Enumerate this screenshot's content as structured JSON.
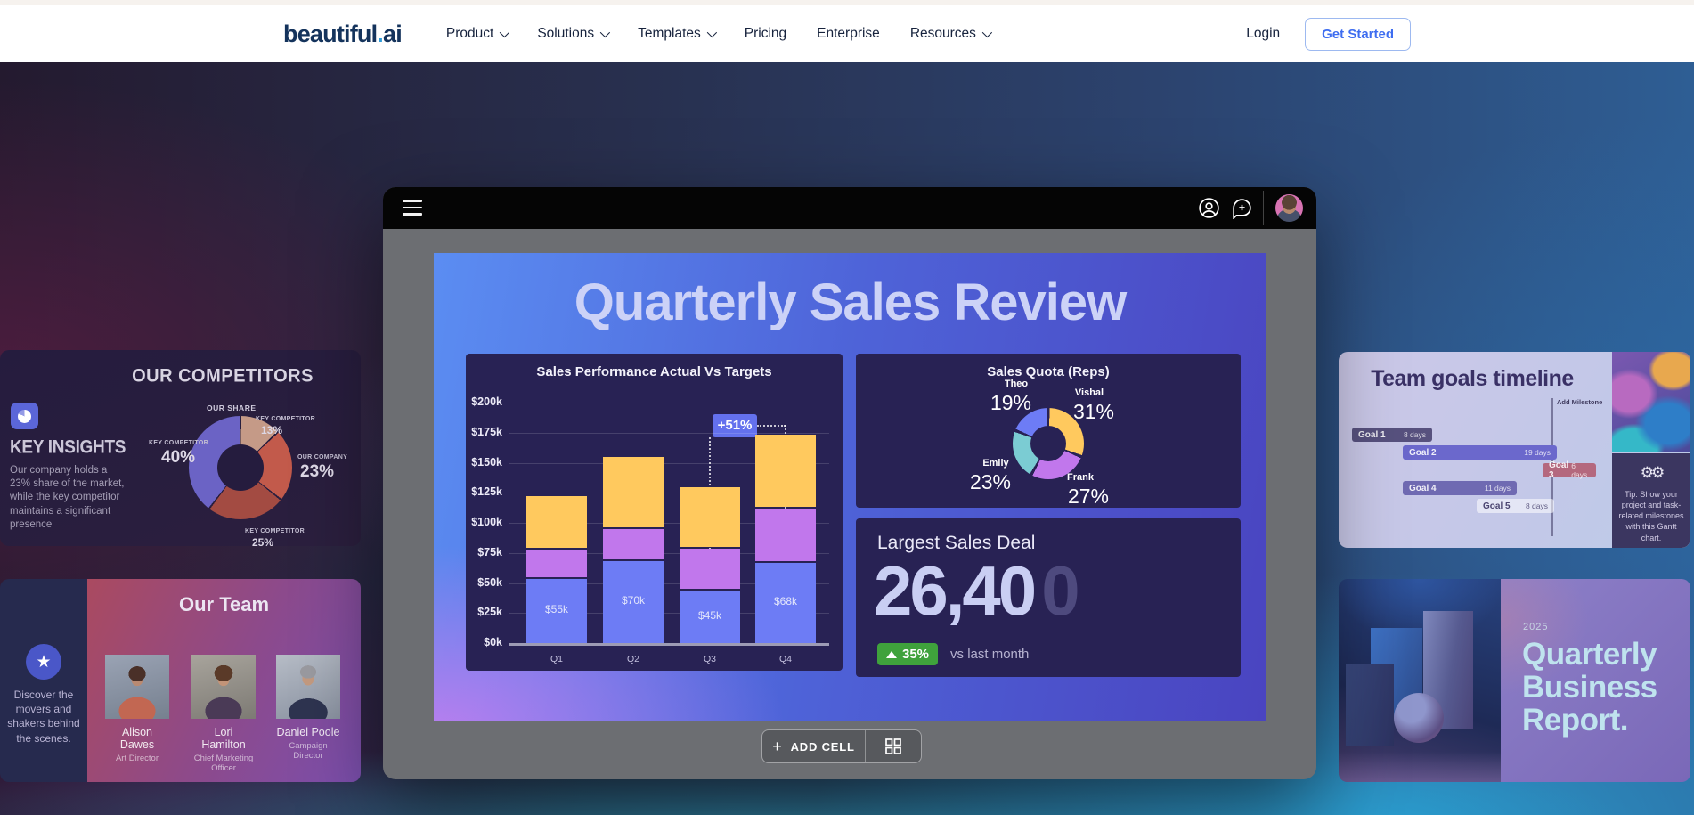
{
  "nav": {
    "logo": {
      "part1": "beautiful",
      "dot": ".",
      "part2": "ai"
    },
    "items": [
      {
        "label": "Product",
        "has_dropdown": true
      },
      {
        "label": "Solutions",
        "has_dropdown": true
      },
      {
        "label": "Templates",
        "has_dropdown": true
      },
      {
        "label": "Pricing",
        "has_dropdown": false
      },
      {
        "label": "Enterprise",
        "has_dropdown": false
      },
      {
        "label": "Resources",
        "has_dropdown": true
      }
    ],
    "login_label": "Login",
    "get_started_label": "Get Started",
    "accent_color": "#3e6df0"
  },
  "editor": {
    "slide": {
      "title": "Quarterly Sales Review",
      "kpi": {
        "title": "Largest Sales Deal",
        "value_main": "26,40",
        "value_ghost": "0",
        "delta": "35%",
        "delta_caption": "vs last month",
        "delta_color": "#3fa23c"
      }
    },
    "add_cell_label": "ADD CELL",
    "icons": [
      "hamburger-menu",
      "account-person",
      "comment-add",
      "user-avatar",
      "add-cell-plus",
      "layout-grid"
    ]
  },
  "chart_data": [
    {
      "type": "bar",
      "stacked": true,
      "title": "Sales Performance Actual Vs Targets",
      "categories": [
        "Q1",
        "Q2",
        "Q3",
        "Q4"
      ],
      "series": [
        {
          "name": "segment-bottom",
          "color": "#6d7cf5",
          "values": [
            55,
            70,
            45,
            68
          ]
        },
        {
          "name": "segment-middle",
          "color": "#c177ec",
          "values": [
            24,
            26,
            35,
            45
          ]
        },
        {
          "name": "segment-top",
          "color": "#ffc95e",
          "values": [
            45,
            60,
            51,
            62
          ]
        }
      ],
      "bar_totals": [
        124,
        156,
        131,
        175
      ],
      "bar_value_labels": [
        "$55k",
        "$70k",
        "$45k",
        "$68k"
      ],
      "y_ticks": [
        "$200k",
        "$175k",
        "$150k",
        "$125k",
        "$100k",
        "$75k",
        "$50k",
        "$25k",
        "$0k"
      ],
      "ylim": [
        0,
        200
      ],
      "grid": true,
      "annotation": {
        "text": "+51%",
        "from": "Q3",
        "to": "Q4"
      }
    },
    {
      "type": "donut",
      "title": "Sales Quota (Reps)",
      "slices": [
        {
          "label": "Vishal",
          "pct": "31%",
          "value": 31,
          "color": "#ffc95e"
        },
        {
          "label": "Frank",
          "pct": "27%",
          "value": 27,
          "color": "#c177ec"
        },
        {
          "label": "Emily",
          "pct": "23%",
          "value": 23,
          "color": "#7bccd3"
        },
        {
          "label": "Theo",
          "pct": "19%",
          "value": 19,
          "color": "#6d7cf5"
        }
      ]
    },
    {
      "type": "donut",
      "title": "OUR COMPETITORS",
      "top_label": "OUR SHARE",
      "slices": [
        {
          "label": "KEY COMPETITOR",
          "pct": "13%",
          "value": 13,
          "color": "#c59a87"
        },
        {
          "label": "OUR COMPANY",
          "pct": "23%",
          "value": 23,
          "color": "#c25a4b"
        },
        {
          "label": "KEY COMPETITOR",
          "pct": "25%",
          "value": 25,
          "color": "#a34b42"
        },
        {
          "label": "KEY COMPETITOR",
          "pct": "40%",
          "value": 40,
          "color": "#6b63c5"
        }
      ]
    }
  ],
  "left_cards": {
    "competitors": {
      "insights_title": "KEY INSIGHTS",
      "insights_body": "Our company holds a 23% share of the market, while the key competitor maintains a significant presence"
    },
    "team": {
      "title": "Our Team",
      "caption": "Discover the movers and shakers behind the scenes.",
      "members": [
        {
          "name": "Alison Dawes",
          "role": "Art Director"
        },
        {
          "name": "Lori Hamilton",
          "role": "Chief Marketing Officer"
        },
        {
          "name": "Daniel Poole",
          "role": "Campaign Director"
        }
      ]
    }
  },
  "right_cards": {
    "timeline": {
      "title": "Team goals timeline",
      "milestone_label": "Add Milestone",
      "goals": [
        {
          "label": "Goal 1",
          "duration": "8 days",
          "color": "#57517e"
        },
        {
          "label": "Goal 2",
          "duration": "19 days",
          "color": "#6b68cc"
        },
        {
          "label": "Goal 3",
          "duration": "6 days",
          "color": "#b4687e"
        },
        {
          "label": "Goal 4",
          "duration": "11 days",
          "color": "#6f6ab2"
        },
        {
          "label": "Goal 5",
          "duration": "8 days",
          "color": "rgba(255,255,255,0.55)",
          "light": true
        }
      ],
      "tip": "Tip: Show your project and task-related milestones with this Gantt chart."
    },
    "report": {
      "year": "2025",
      "title_line1": "Quarterly",
      "title_line2": "Business",
      "title_line3": "Report."
    }
  }
}
